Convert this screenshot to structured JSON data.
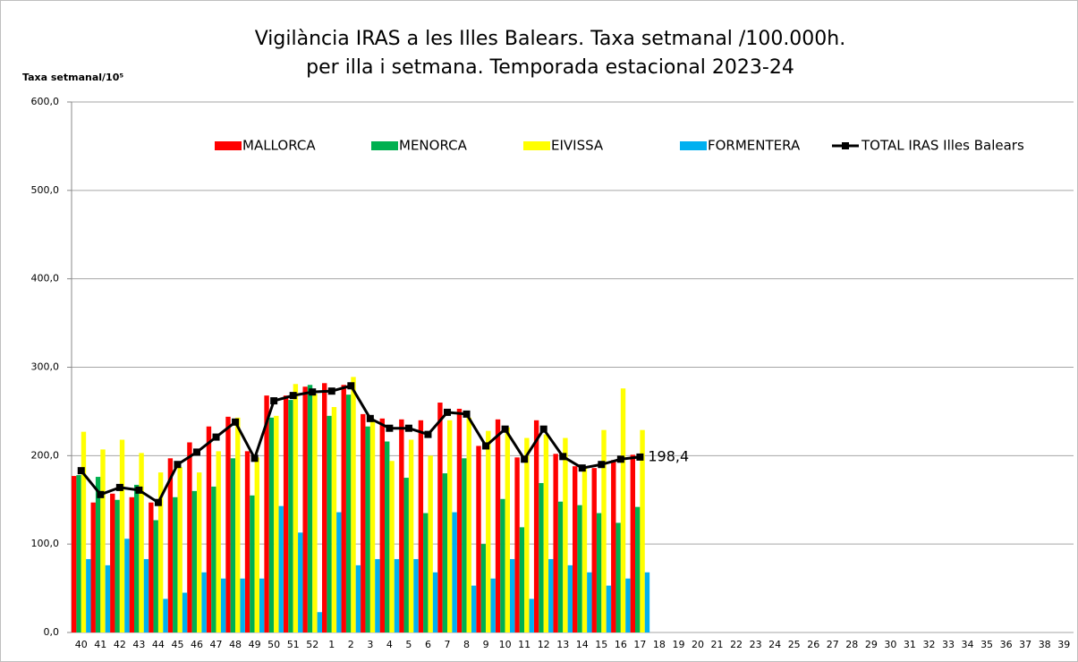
{
  "chart_data": {
    "type": "bar",
    "title": "Vigilància IRAS a les Illes Balears.  Taxa setmanal /100.000h.",
    "subtitle": "per illa i setmana. Temporada estacional 2023-24",
    "y_axis_label": "Taxa setmanal/10⁵",
    "categories": [
      "40",
      "41",
      "42",
      "43",
      "44",
      "45",
      "46",
      "47",
      "48",
      "49",
      "50",
      "51",
      "52",
      "1",
      "2",
      "3",
      "4",
      "5",
      "6",
      "7",
      "8",
      "9",
      "10",
      "11",
      "12",
      "13",
      "14",
      "15",
      "16",
      "17",
      "18",
      "19",
      "20",
      "21",
      "22",
      "23",
      "24",
      "25",
      "26",
      "27",
      "28",
      "29",
      "30",
      "31",
      "32",
      "33",
      "34",
      "35",
      "36",
      "37",
      "38",
      "39"
    ],
    "ylim": [
      0,
      600
    ],
    "yticks": [
      {
        "value": 0,
        "label": "0,0"
      },
      {
        "value": 100,
        "label": "100,0"
      },
      {
        "value": 200,
        "label": "200,0"
      },
      {
        "value": 300,
        "label": "300,0"
      },
      {
        "value": 400,
        "label": "400,0"
      },
      {
        "value": 500,
        "label": "500,0"
      },
      {
        "value": 600,
        "label": "600,0"
      }
    ],
    "grid": true,
    "legend": "top",
    "series": [
      {
        "name": "MALLORCA",
        "color": "#ff0000",
        "values": [
          177,
          147,
          157,
          153,
          147,
          197,
          215,
          233,
          244,
          205,
          268,
          268,
          278,
          282,
          280,
          247,
          242,
          241,
          240,
          260,
          253,
          211,
          241,
          198,
          240,
          202,
          188,
          186,
          195,
          201,
          null,
          null,
          null,
          null,
          null,
          null,
          null,
          null,
          null,
          null,
          null,
          null,
          null,
          null,
          null,
          null,
          null,
          null,
          null,
          null,
          null,
          null
        ]
      },
      {
        "name": "MENORCA",
        "color": "#00b050",
        "values": [
          178,
          176,
          150,
          167,
          127,
          153,
          160,
          165,
          197,
          155,
          243,
          263,
          280,
          245,
          269,
          233,
          216,
          175,
          135,
          180,
          197,
          100,
          151,
          119,
          169,
          148,
          144,
          135,
          124,
          142,
          null,
          null,
          null,
          null,
          null,
          null,
          null,
          null,
          null,
          null,
          null,
          null,
          null,
          null,
          null,
          null,
          null,
          null,
          null,
          null,
          null,
          null
        ]
      },
      {
        "name": "EIVISSA",
        "color": "#ffff00",
        "values": [
          227,
          207,
          218,
          203,
          181,
          187,
          181,
          205,
          243,
          198,
          245,
          281,
          270,
          255,
          289,
          241,
          194,
          218,
          200,
          240,
          243,
          228,
          232,
          220,
          224,
          220,
          187,
          229,
          276,
          229,
          null,
          null,
          null,
          null,
          null,
          null,
          null,
          null,
          null,
          null,
          null,
          null,
          null,
          null,
          null,
          null,
          null,
          null,
          null,
          null,
          null,
          null
        ]
      },
      {
        "name": "FORMENTERA",
        "color": "#00b0f0",
        "values": [
          83,
          76,
          106,
          83,
          38,
          45,
          68,
          61,
          61,
          61,
          143,
          113,
          23,
          136,
          76,
          83,
          83,
          83,
          68,
          136,
          53,
          61,
          83,
          38,
          83,
          76,
          68,
          53,
          61,
          68,
          null,
          null,
          null,
          null,
          null,
          null,
          null,
          null,
          null,
          null,
          null,
          null,
          null,
          null,
          null,
          null,
          null,
          null,
          null,
          null,
          null,
          null
        ]
      },
      {
        "name": "TOTAL IRAS Illes Balears",
        "color": "#000000",
        "type": "line",
        "values": [
          183,
          156,
          164,
          161,
          147,
          190,
          204,
          221,
          238,
          197,
          262,
          268,
          272,
          273,
          279,
          242,
          231,
          231,
          224,
          249,
          247,
          211,
          230,
          196,
          230,
          199,
          186,
          190,
          196,
          198.4,
          null,
          null,
          null,
          null,
          null,
          null,
          null,
          null,
          null,
          null,
          null,
          null,
          null,
          null,
          null,
          null,
          null,
          null,
          null,
          null,
          null,
          null
        ],
        "value_labels": [
          null,
          null,
          null,
          null,
          null,
          null,
          null,
          null,
          null,
          null,
          null,
          null,
          null,
          null,
          null,
          null,
          null,
          null,
          null,
          null,
          null,
          null,
          null,
          null,
          null,
          null,
          null,
          null,
          null,
          "198,4",
          null,
          null,
          null,
          null,
          null,
          null,
          null,
          null,
          null,
          null,
          null,
          null,
          null,
          null,
          null,
          null,
          null,
          null,
          null,
          null,
          null,
          null
        ]
      }
    ]
  }
}
